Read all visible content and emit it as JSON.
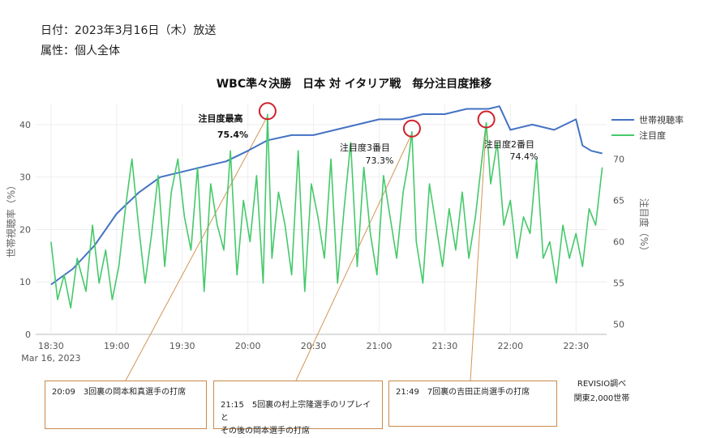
{
  "meta": {
    "date": "日付：2023年3月16日（木）放送",
    "attribute": "属性：個人全体"
  },
  "chart_data": {
    "type": "line",
    "title": "WBC準々決勝　日本 対 イタリア戦　毎分注目度推移",
    "x_range_minutes": [
      "18:23",
      "22:44"
    ],
    "x_ticks": [
      "18:30",
      "19:00",
      "19:30",
      "20:00",
      "20:30",
      "21:00",
      "21:30",
      "22:00",
      "22:30"
    ],
    "x_date_label": "Mar 16, 2023",
    "y_left": {
      "label": "世帯視聴率（%）",
      "ticks": [
        0,
        10,
        20,
        30,
        40
      ],
      "range": [
        0,
        44
      ]
    },
    "y_right": {
      "label": "注目度（%）",
      "ticks": [
        50,
        55,
        60,
        65,
        70
      ],
      "range": [
        48.8,
        76.7
      ]
    },
    "grid": true,
    "legend_position": "top-right",
    "series": [
      {
        "name": "世帯視聴率",
        "axis": "left",
        "color": "#4472c4",
        "x": [
          "18:30",
          "18:40",
          "18:50",
          "19:00",
          "19:10",
          "19:20",
          "19:30",
          "19:40",
          "19:50",
          "20:00",
          "20:09",
          "20:20",
          "20:30",
          "20:40",
          "20:50",
          "21:00",
          "21:10",
          "21:20",
          "21:30",
          "21:40",
          "21:50",
          "21:55",
          "22:00",
          "22:10",
          "22:20",
          "22:30",
          "22:33",
          "22:37",
          "22:42"
        ],
        "values": [
          9.5,
          12.5,
          17,
          23,
          27,
          30,
          31,
          32,
          33,
          35,
          37,
          38,
          38,
          39,
          40,
          41,
          41,
          42,
          42,
          43,
          43,
          43.5,
          39,
          40,
          39,
          41,
          36,
          35,
          34.5
        ]
      },
      {
        "name": "注目度",
        "axis": "right",
        "color": "#45c96a",
        "x": [
          "18:30",
          "18:33",
          "18:36",
          "18:39",
          "18:42",
          "18:46",
          "18:49",
          "18:52",
          "18:55",
          "18:58",
          "19:01",
          "19:04",
          "19:07",
          "19:10",
          "19:13",
          "19:16",
          "19:19",
          "19:22",
          "19:25",
          "19:28",
          "19:31",
          "19:34",
          "19:37",
          "19:40",
          "19:43",
          "19:46",
          "19:49",
          "19:52",
          "19:55",
          "19:58",
          "20:01",
          "20:04",
          "20:07",
          "20:09",
          "20:11",
          "20:14",
          "20:17",
          "20:20",
          "20:23",
          "20:26",
          "20:29",
          "20:32",
          "20:35",
          "20:38",
          "20:41",
          "20:44",
          "20:47",
          "20:50",
          "20:53",
          "20:56",
          "20:59",
          "21:02",
          "21:05",
          "21:08",
          "21:11",
          "21:13",
          "21:15",
          "21:17",
          "21:20",
          "21:23",
          "21:26",
          "21:29",
          "21:32",
          "21:35",
          "21:38",
          "21:41",
          "21:44",
          "21:47",
          "21:49",
          "21:51",
          "21:54",
          "21:57",
          "22:00",
          "22:03",
          "22:06",
          "22:09",
          "22:12",
          "22:15",
          "22:18",
          "22:21",
          "22:24",
          "22:27",
          "22:30",
          "22:33",
          "22:36",
          "22:39",
          "22:42"
        ],
        "values": [
          60,
          53,
          56,
          52,
          58,
          54,
          62,
          55,
          59,
          53,
          57,
          64,
          70,
          62,
          55,
          61,
          68,
          57,
          66,
          70,
          63,
          59,
          69,
          54,
          67,
          62,
          59,
          71,
          56,
          65,
          60,
          68,
          55,
          75.4,
          58,
          66,
          62,
          56,
          71,
          54,
          67,
          63,
          58,
          70,
          55,
          64,
          72,
          57,
          69,
          61,
          56,
          68,
          63,
          58,
          66,
          69,
          73.3,
          60,
          55,
          67,
          62,
          57,
          64,
          59,
          66,
          58,
          63,
          70,
          74.4,
          67,
          72,
          62,
          65,
          58,
          63,
          61,
          70,
          58,
          60,
          55,
          62,
          58,
          61,
          57,
          64,
          62,
          69
        ]
      }
    ],
    "annotations": [
      {
        "label": "注目度最高",
        "value": "75.4%"
      },
      {
        "label": "注目度3番目",
        "value": "73.3%"
      },
      {
        "label": "注目度2番目",
        "value": "74.4%"
      }
    ],
    "callouts": [
      "20:09　3回裏の岡本和真選手の打席",
      "21:15　5回裏の村上宗隆選手のリプレイと\nその後の岡本選手の打席",
      "21:49　7回裏の吉田正尚選手の打席"
    ]
  },
  "source": {
    "line1": "REVISIO調べ",
    "line2": "関東2,000世帯"
  }
}
